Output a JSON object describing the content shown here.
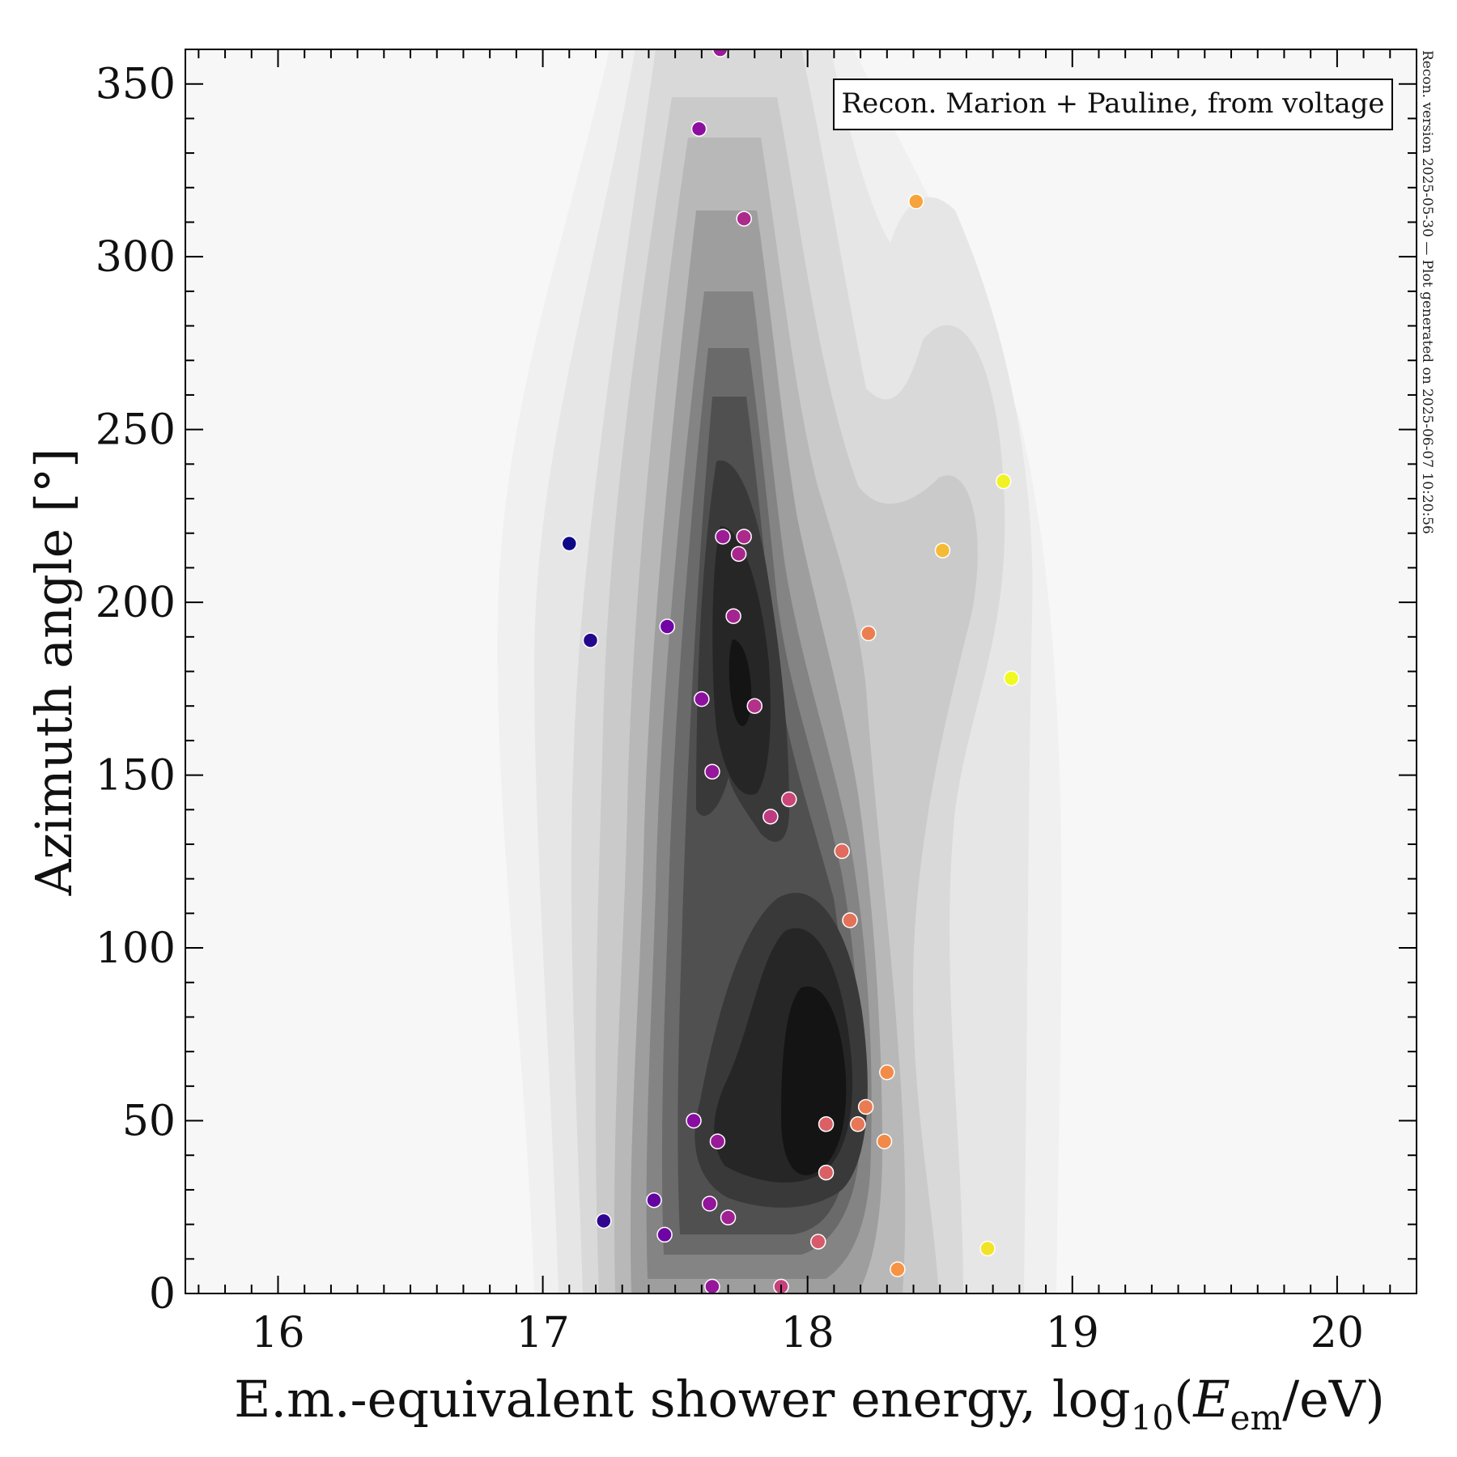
{
  "chart_data": {
    "type": "scatter",
    "title": "",
    "xlabel": "E.m.-equivalent shower energy, log10(E_em/eV)",
    "xlabel_parts": {
      "main": "E.m.-equivalent shower energy, log",
      "sub10": "10",
      "open": "(",
      "E": "E",
      "sub_em": "em",
      "rest": "/eV)"
    },
    "ylabel": "Azimuth angle [°]",
    "xlim": [
      15.65,
      20.3
    ],
    "ylim": [
      0,
      360
    ],
    "x_ticks": [
      16,
      17,
      18,
      19,
      20
    ],
    "y_ticks": [
      0,
      50,
      100,
      150,
      200,
      250,
      300,
      350
    ],
    "legend": "Recon. Marion + Pauline, from voltage",
    "side_note": "Recon. version 2025-05-30 — Plot generated on 2025-06-07 10:20:56",
    "background": "density contours (gray, KDE)",
    "colormap": "plasma (by energy)",
    "points": [
      {
        "x": 17.1,
        "y": 217
      },
      {
        "x": 17.18,
        "y": 189
      },
      {
        "x": 17.23,
        "y": 21
      },
      {
        "x": 17.42,
        "y": 27
      },
      {
        "x": 17.46,
        "y": 17
      },
      {
        "x": 17.47,
        "y": 193
      },
      {
        "x": 17.57,
        "y": 50
      },
      {
        "x": 17.59,
        "y": 337
      },
      {
        "x": 17.6,
        "y": 172
      },
      {
        "x": 17.63,
        "y": 26
      },
      {
        "x": 17.64,
        "y": 151
      },
      {
        "x": 17.64,
        "y": 2
      },
      {
        "x": 17.66,
        "y": 44
      },
      {
        "x": 17.67,
        "y": 360
      },
      {
        "x": 17.68,
        "y": 219
      },
      {
        "x": 17.7,
        "y": 22
      },
      {
        "x": 17.72,
        "y": 196
      },
      {
        "x": 17.74,
        "y": 214
      },
      {
        "x": 17.76,
        "y": 219
      },
      {
        "x": 17.76,
        "y": 311
      },
      {
        "x": 17.8,
        "y": 170
      },
      {
        "x": 17.86,
        "y": 138
      },
      {
        "x": 17.9,
        "y": 2
      },
      {
        "x": 17.93,
        "y": 143
      },
      {
        "x": 18.04,
        "y": 15
      },
      {
        "x": 18.07,
        "y": 49
      },
      {
        "x": 18.07,
        "y": 35
      },
      {
        "x": 18.13,
        "y": 128
      },
      {
        "x": 18.16,
        "y": 108
      },
      {
        "x": 18.19,
        "y": 49
      },
      {
        "x": 18.22,
        "y": 54
      },
      {
        "x": 18.23,
        "y": 191
      },
      {
        "x": 18.29,
        "y": 44
      },
      {
        "x": 18.3,
        "y": 64
      },
      {
        "x": 18.34,
        "y": 7
      },
      {
        "x": 18.41,
        "y": 316
      },
      {
        "x": 18.51,
        "y": 215
      },
      {
        "x": 18.68,
        "y": 13
      },
      {
        "x": 18.74,
        "y": 235
      },
      {
        "x": 18.77,
        "y": 178
      }
    ]
  }
}
